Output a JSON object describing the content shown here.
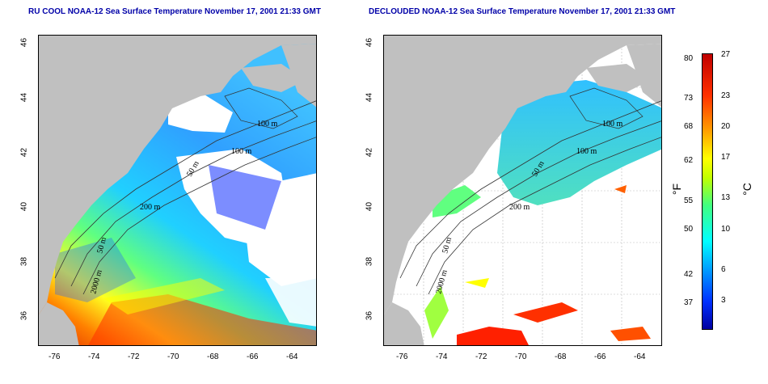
{
  "titles": {
    "left": "RU COOL NOAA-12 Sea Surface Temperature November 17, 2001 21:33 GMT",
    "right": "DECLOUDED NOAA-12 Sea Surface Temperature November 17, 2001 21:33 GMT"
  },
  "axes": {
    "lon_ticks": [
      "-76",
      "-74",
      "-72",
      "-70",
      "-68",
      "-66",
      "-64"
    ],
    "lat_ticks": [
      "36",
      "38",
      "40",
      "42",
      "44",
      "46"
    ]
  },
  "contour_labels": {
    "left": [
      "100 m",
      "100 m",
      "50 m",
      "200 m",
      "50 m",
      "2000 m"
    ],
    "right": [
      "100 m",
      "100 m",
      "50 m",
      "200 m",
      "50 m",
      "2000 m"
    ]
  },
  "colorbar": {
    "fahrenheit_label": "°F",
    "celsius_label": "°C",
    "fahrenheit_ticks": [
      "80",
      "73",
      "68",
      "62",
      "55",
      "50",
      "42",
      "37"
    ],
    "celsius_ticks": [
      "27",
      "23",
      "20",
      "17",
      "13",
      "10",
      "6",
      "3"
    ]
  },
  "colors": {
    "land": "#c0c0c0",
    "cloud": "#ffffff",
    "title": "#0000a8"
  }
}
